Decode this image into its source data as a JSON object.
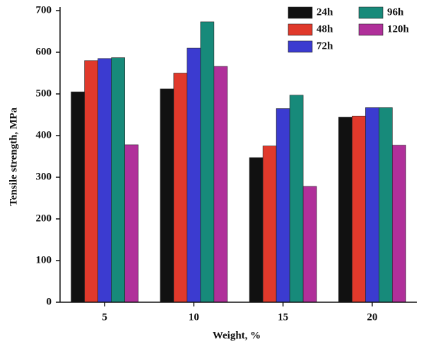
{
  "chart_data": {
    "type": "bar",
    "xlabel": "Weight, %",
    "ylabel": "Tensile strength, MPa",
    "categories": [
      "5",
      "10",
      "15",
      "20"
    ],
    "series": [
      {
        "name": "24h",
        "color": "#111111",
        "values": [
          505,
          512,
          347,
          444
        ]
      },
      {
        "name": "48h",
        "color": "#e0392b",
        "values": [
          580,
          550,
          375,
          447
        ]
      },
      {
        "name": "72h",
        "color": "#3b3bd0",
        "values": [
          585,
          610,
          465,
          467
        ]
      },
      {
        "name": "96h",
        "color": "#178a7a",
        "values": [
          587,
          673,
          497,
          467
        ]
      },
      {
        "name": "120h",
        "color": "#b0309a",
        "values": [
          378,
          566,
          278,
          377
        ]
      }
    ],
    "ylim": [
      0,
      700
    ],
    "yticks": [
      0,
      100,
      200,
      300,
      400,
      500,
      600,
      700
    ]
  }
}
